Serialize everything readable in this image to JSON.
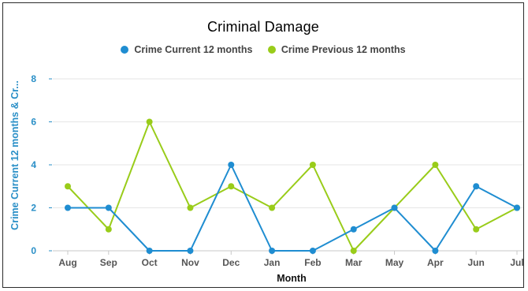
{
  "chart_data": {
    "type": "line",
    "title": "Criminal Damage",
    "xlabel": "Month",
    "ylabel": "Crime Current 12 months & Cr...",
    "categories": [
      "Aug",
      "Sep",
      "Oct",
      "Nov",
      "Dec",
      "Jan",
      "Feb",
      "Mar",
      "May",
      "Apr",
      "Jun",
      "Jul"
    ],
    "ylim": [
      0,
      8
    ],
    "yticks": [
      0,
      2,
      4,
      6,
      8
    ],
    "grid": true,
    "legend_position": "top-center",
    "series": [
      {
        "name": "Crime Current 12 months",
        "color": "#1f8dd1",
        "values": [
          2,
          2,
          0,
          0,
          4,
          0,
          0,
          1,
          2,
          0,
          3,
          2
        ]
      },
      {
        "name": "Crime Previous 12 months",
        "color": "#99cc1a",
        "values": [
          3,
          1,
          6,
          2,
          3,
          2,
          4,
          0,
          2,
          4,
          1,
          2
        ]
      }
    ]
  }
}
